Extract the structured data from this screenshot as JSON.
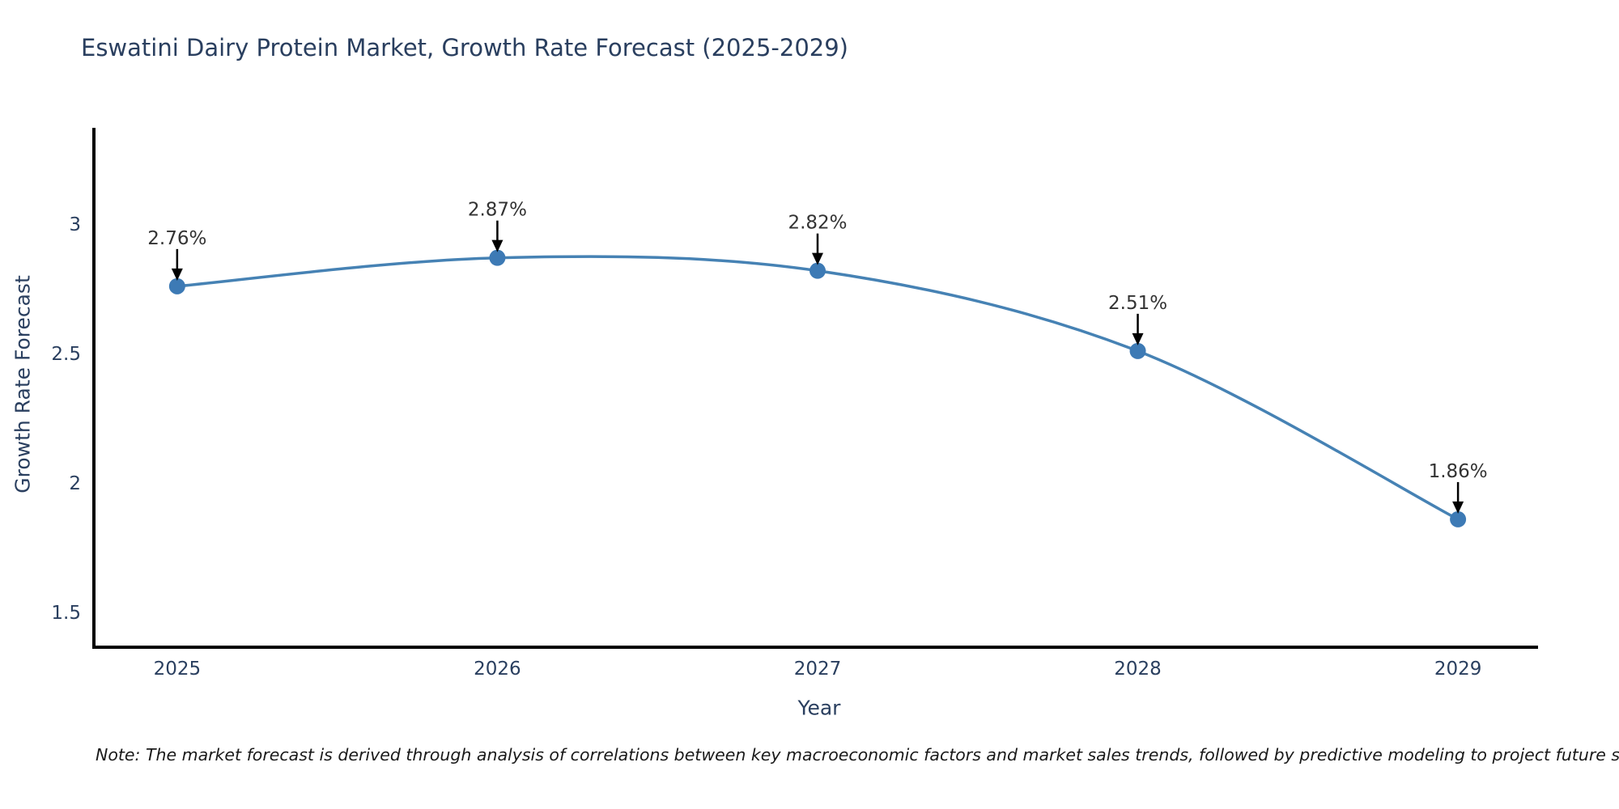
{
  "title": "Eswatini Dairy Protein Market, Growth Rate Forecast (2025-2029)",
  "note": "Note: The market forecast is derived through analysis of correlations between key macroeconomic factors and market sales trends, followed by predictive modeling to project future sales",
  "chart_data": {
    "type": "line",
    "title": "Eswatini Dairy Protein Market, Growth Rate Forecast (2025-2029)",
    "xlabel": "Year",
    "ylabel": "Growth Rate Forecast",
    "x": [
      2025,
      2026,
      2027,
      2028,
      2029
    ],
    "values": [
      2.76,
      2.87,
      2.82,
      2.51,
      1.86
    ],
    "point_labels": [
      "2.76%",
      "2.87%",
      "2.82%",
      "2.51%",
      "1.86%"
    ],
    "xtick_labels": [
      "2025",
      "2026",
      "2027",
      "2028",
      "2029"
    ],
    "ytick_values": [
      1.5,
      2,
      2.5,
      3
    ],
    "ytick_labels": [
      "1.5",
      "2",
      "2.5",
      "3"
    ],
    "xlim": [
      2024.74,
      2029.25
    ],
    "ylim": [
      1.366,
      3.372
    ],
    "grid": false,
    "legend": "none",
    "line_color": "#4682b4",
    "marker_color": "#3d7ab5",
    "axis_color": "#000000",
    "tick_color": "#2a3f5f",
    "annotation_text_color": "#333333",
    "annotation_arrow_color": "#000000"
  }
}
